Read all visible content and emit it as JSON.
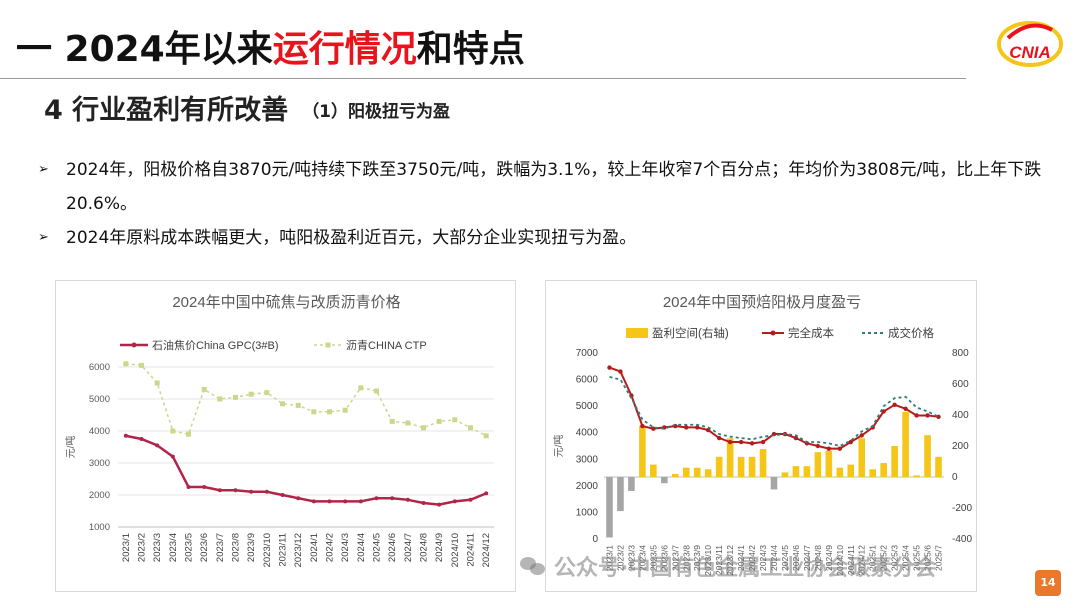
{
  "header": {
    "title_prefix": "一 2024年以来",
    "title_highlight": "运行情况",
    "title_suffix": "和特点",
    "logo_text": "CNIA"
  },
  "section": {
    "title": "4 行业盈利有所改善",
    "subtitle": "（1）阳极扭亏为盈"
  },
  "bullets": [
    "2024年，阳极价格自3870元/吨持续下跌至3750元/吨，跌幅为3.1%，较上年收窄7个百分点；年均价为3808元/吨，比上年下跌20.6%。",
    "2024年原料成本跌幅更大，吨阳极盈利近百元，大部分企业实现扭亏为盈。"
  ],
  "footer": {
    "page_number": "14",
    "watermark": "公众号·中国有色金属工业协会碳素分会"
  },
  "chart_data": [
    {
      "type": "line",
      "title": "2024年中国中硫焦与改质沥青价格",
      "ylabel": "元/吨",
      "ylim": [
        1000,
        6000
      ],
      "yticks": [
        1000,
        2000,
        3000,
        4000,
        5000,
        6000
      ],
      "legend_position": "top",
      "x": [
        "2023/1",
        "2023/2",
        "2023/3",
        "2023/4",
        "2023/5",
        "2023/6",
        "2023/7",
        "2023/8",
        "2023/9",
        "2023/10",
        "2023/11",
        "2023/12",
        "2024/1",
        "2024/2",
        "2024/3",
        "2024/4",
        "2024/5",
        "2024/6",
        "2024/7",
        "2024/8",
        "2024/9",
        "2024/10",
        "2024/11",
        "2024/12"
      ],
      "series": [
        {
          "name": "石油焦价China GPC(3#B)",
          "color": "#b0264a",
          "style": "solid",
          "values": [
            3850,
            3750,
            3550,
            3200,
            2250,
            2250,
            2150,
            2150,
            2100,
            2100,
            2000,
            1900,
            1800,
            1800,
            1800,
            1800,
            1900,
            1900,
            1850,
            1750,
            1700,
            1800,
            1850,
            2050
          ]
        },
        {
          "name": "沥青CHINA CTP",
          "color": "#c9d88a",
          "style": "dashed",
          "values": [
            6100,
            6050,
            5500,
            4000,
            3900,
            5300,
            5000,
            5050,
            5150,
            5200,
            4850,
            4800,
            4600,
            4600,
            4650,
            5350,
            5250,
            4300,
            4250,
            4100,
            4300,
            4350,
            4100,
            3850
          ]
        }
      ]
    },
    {
      "type": "bar+line",
      "title": "2024年中国预焙阳极月度盈亏",
      "ylabel": "元/吨",
      "ylim": [
        0,
        7000
      ],
      "yticks": [
        0,
        1000,
        2000,
        3000,
        4000,
        5000,
        6000,
        7000
      ],
      "y2lim": [
        -400,
        800
      ],
      "y2ticks": [
        -400,
        -200,
        0,
        200,
        400,
        600,
        800
      ],
      "legend_position": "top",
      "series": [
        {
          "name": "盈利空间(右轴)",
          "kind": "bar",
          "axis": "right",
          "color": "#f5c518",
          "negative_color": "#a6a6a6",
          "values": [
            -390,
            -220,
            -90,
            330,
            80,
            -40,
            20,
            60,
            60,
            50,
            130,
            250,
            130,
            130,
            180,
            -80,
            30,
            70,
            70,
            160,
            170,
            60,
            80,
            250,
            50,
            90,
            200,
            420,
            10,
            270,
            130
          ]
        },
        {
          "name": "完全成本",
          "kind": "line",
          "axis": "left",
          "color": "#b71c1c",
          "values": [
            6450,
            6300,
            5400,
            4250,
            4150,
            4200,
            4250,
            4200,
            4200,
            4100,
            3800,
            3650,
            3650,
            3600,
            3650,
            3950,
            3950,
            3800,
            3600,
            3500,
            3400,
            3400,
            3650,
            3900,
            4200,
            4800,
            5050,
            4900,
            4650,
            4650,
            4600
          ]
        },
        {
          "name": "成交价格",
          "kind": "line",
          "axis": "left",
          "color": "#2e7d7d",
          "style": "dashed",
          "values": [
            6100,
            6000,
            5300,
            4500,
            4200,
            4150,
            4300,
            4300,
            4300,
            4200,
            3950,
            3850,
            3800,
            3750,
            3850,
            3900,
            3950,
            3900,
            3650,
            3650,
            3600,
            3500,
            3700,
            4050,
            4250,
            5000,
            5300,
            5350,
            4950,
            4800,
            4600
          ]
        }
      ]
    }
  ]
}
